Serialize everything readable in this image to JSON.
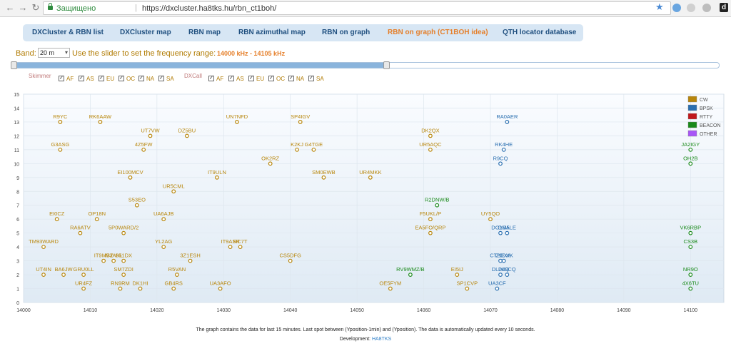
{
  "browser": {
    "secure_label": "Защищено",
    "separator": "|",
    "url": "https://dxcluster.ha8tks.hu/rbn_ct1boh/"
  },
  "nav": {
    "tabs": [
      {
        "label": "DXCluster & RBN list",
        "active": false
      },
      {
        "label": "DXCluster map",
        "active": false
      },
      {
        "label": "RBN map",
        "active": false
      },
      {
        "label": "RBN azimuthal map",
        "active": false
      },
      {
        "label": "RBN on graph",
        "active": false
      },
      {
        "label": "RBN on graph (CT1BOH idea)",
        "active": true
      },
      {
        "label": "QTH locator database",
        "active": false
      }
    ]
  },
  "controls": {
    "band_label": "Band:",
    "band_value": "20 m",
    "slider_label": "Use the slider to set the frequency range:",
    "range_text": "14000 kHz - 14105 kHz",
    "slider_fraction": [
      0.0,
      0.53
    ],
    "skimmer_label": "Skimmer",
    "dxcall_label": "DXCall",
    "skimmer_filters": [
      {
        "label": "AF",
        "checked": true
      },
      {
        "label": "AS",
        "checked": true
      },
      {
        "label": "EU",
        "checked": true
      },
      {
        "label": "OC",
        "checked": true
      },
      {
        "label": "NA",
        "checked": true
      },
      {
        "label": "SA",
        "checked": true
      }
    ],
    "dxcall_filters": [
      {
        "label": "AF",
        "checked": true
      },
      {
        "label": "AS",
        "checked": true
      },
      {
        "label": "EU",
        "checked": true
      },
      {
        "label": "OC",
        "checked": true
      },
      {
        "label": "NA",
        "checked": true
      },
      {
        "label": "SA",
        "checked": true
      }
    ]
  },
  "footer": {
    "note": "The graph contains the data for last 15 minutes. Last spot between (Yposition-1min) and (Yposition). The data is automatically updated every 10 seconds.",
    "dev_label": "Development:",
    "dev_name": "HA8TKS"
  },
  "chart_data": {
    "type": "scatter",
    "xlim": [
      14000,
      14105
    ],
    "ylim": [
      0,
      15
    ],
    "x_ticks": [
      14000,
      14010,
      14020,
      14030,
      14040,
      14050,
      14060,
      14070,
      14080,
      14090,
      14100
    ],
    "y_ticks": [
      0,
      1,
      2,
      3,
      4,
      5,
      6,
      7,
      8,
      9,
      10,
      11,
      12,
      13,
      14,
      15
    ],
    "grid": true,
    "legend_position": "top-right",
    "legend": [
      {
        "name": "CW",
        "color": "#b8860b"
      },
      {
        "name": "BPSK",
        "color": "#2a6fb0"
      },
      {
        "name": "RTTY",
        "color": "#c0181c"
      },
      {
        "name": "BEACON",
        "color": "#1a8a1a"
      },
      {
        "name": "OTHER",
        "color": "#a855f7"
      }
    ],
    "colors": {
      "CW": "#b8860b",
      "BPSK": "#2a6fb0",
      "BEACON": "#1a8a1a"
    },
    "points": [
      {
        "call": "R9YC",
        "x": 14005.5,
        "y": 13,
        "mode": "CW"
      },
      {
        "call": "RK6AAW",
        "x": 14011.5,
        "y": 13,
        "mode": "CW"
      },
      {
        "call": "UN7NFD",
        "x": 14032.0,
        "y": 13,
        "mode": "CW"
      },
      {
        "call": "SP4IGV",
        "x": 14041.5,
        "y": 13,
        "mode": "CW"
      },
      {
        "call": "RA0AER",
        "x": 14072.5,
        "y": 13,
        "mode": "BPSK"
      },
      {
        "call": "UT7VW",
        "x": 14019.0,
        "y": 12,
        "mode": "CW"
      },
      {
        "call": "DZ5BU",
        "x": 14024.5,
        "y": 12,
        "mode": "CW"
      },
      {
        "call": "DK2QX",
        "x": 14061.0,
        "y": 12,
        "mode": "CW"
      },
      {
        "call": "G3ASG",
        "x": 14005.5,
        "y": 11,
        "mode": "CW"
      },
      {
        "call": "4Z5FW",
        "x": 14018.0,
        "y": 11,
        "mode": "CW"
      },
      {
        "call": "K2KJ",
        "x": 14041.0,
        "y": 11,
        "mode": "CW"
      },
      {
        "call": "G4TGE",
        "x": 14043.5,
        "y": 11,
        "mode": "CW"
      },
      {
        "call": "UR5AQC",
        "x": 14061.0,
        "y": 11,
        "mode": "CW"
      },
      {
        "call": "RK4HE",
        "x": 14072.0,
        "y": 11,
        "mode": "BPSK"
      },
      {
        "call": "JA2IGY",
        "x": 14100.0,
        "y": 11,
        "mode": "BEACON"
      },
      {
        "call": "OK2RZ",
        "x": 14037.0,
        "y": 10,
        "mode": "CW"
      },
      {
        "call": "R9CQ",
        "x": 14071.5,
        "y": 10,
        "mode": "BPSK"
      },
      {
        "call": "OH2B",
        "x": 14100.0,
        "y": 10,
        "mode": "BEACON"
      },
      {
        "call": "EI100MCV",
        "x": 14016.0,
        "y": 9,
        "mode": "CW"
      },
      {
        "call": "IT9ULN",
        "x": 14029.0,
        "y": 9,
        "mode": "CW"
      },
      {
        "call": "SM0EWB",
        "x": 14045.0,
        "y": 9,
        "mode": "CW"
      },
      {
        "call": "UR4MKK",
        "x": 14052.0,
        "y": 9,
        "mode": "CW"
      },
      {
        "call": "UR5CML",
        "x": 14022.5,
        "y": 8,
        "mode": "CW"
      },
      {
        "call": "S53EO",
        "x": 14017.0,
        "y": 7,
        "mode": "CW"
      },
      {
        "call": "R2DNW/B",
        "x": 14062.0,
        "y": 7,
        "mode": "BEACON"
      },
      {
        "call": "EI0CZ",
        "x": 14005.0,
        "y": 6,
        "mode": "CW"
      },
      {
        "call": "OP18N",
        "x": 14011.0,
        "y": 6,
        "mode": "CW"
      },
      {
        "call": "UA6AJB",
        "x": 14021.0,
        "y": 6,
        "mode": "CW"
      },
      {
        "call": "F5UKL/P",
        "x": 14061.0,
        "y": 6,
        "mode": "CW"
      },
      {
        "call": "UY5QO",
        "x": 14070.0,
        "y": 6,
        "mode": "CW"
      },
      {
        "call": "RA6ATV",
        "x": 14008.5,
        "y": 5,
        "mode": "CW"
      },
      {
        "call": "5P0WARD/2",
        "x": 14015.0,
        "y": 5,
        "mode": "CW"
      },
      {
        "call": "EA5FO/QRP",
        "x": 14061.0,
        "y": 5,
        "mode": "CW"
      },
      {
        "call": "DG1SA",
        "x": 14071.5,
        "y": 5,
        "mode": "BPSK"
      },
      {
        "call": "DM5LE",
        "x": 14072.5,
        "y": 5,
        "mode": "BPSK"
      },
      {
        "call": "VK6RBP",
        "x": 14100.0,
        "y": 5,
        "mode": "BEACON"
      },
      {
        "call": "TM93WARD",
        "x": 14003.0,
        "y": 4,
        "mode": "CW"
      },
      {
        "call": "YL2AG",
        "x": 14021.0,
        "y": 4,
        "mode": "CW"
      },
      {
        "call": "IT9ASR",
        "x": 14031.0,
        "y": 4,
        "mode": "CW"
      },
      {
        "call": "RC7T",
        "x": 14032.5,
        "y": 4,
        "mode": "CW"
      },
      {
        "call": "CS3B",
        "x": 14100.0,
        "y": 4,
        "mode": "BEACON"
      },
      {
        "call": "IT9MBZ",
        "x": 14012.0,
        "y": 3,
        "mode": "CW"
      },
      {
        "call": "IV3AHL",
        "x": 14013.5,
        "y": 3,
        "mode": "CW"
      },
      {
        "call": "S51DX",
        "x": 14015.0,
        "y": 3,
        "mode": "CW"
      },
      {
        "call": "3Z1ESH",
        "x": 14025.0,
        "y": 3,
        "mode": "CW"
      },
      {
        "call": "CS5DFG",
        "x": 14040.0,
        "y": 3,
        "mode": "CW"
      },
      {
        "call": "CT2DXA",
        "x": 14071.5,
        "y": 3,
        "mode": "BPSK"
      },
      {
        "call": "IZ0DXK",
        "x": 14072.0,
        "y": 3,
        "mode": "BPSK"
      },
      {
        "call": "UT4IN",
        "x": 14003.0,
        "y": 2,
        "mode": "CW"
      },
      {
        "call": "BA6JW",
        "x": 14006.0,
        "y": 2,
        "mode": "CW"
      },
      {
        "call": "GRU0LL",
        "x": 14009.0,
        "y": 2,
        "mode": "CW"
      },
      {
        "call": "SM7ZDI",
        "x": 14015.0,
        "y": 2,
        "mode": "CW"
      },
      {
        "call": "R5VAN",
        "x": 14023.0,
        "y": 2,
        "mode": "CW"
      },
      {
        "call": "RV9WMZ/B",
        "x": 14058.0,
        "y": 2,
        "mode": "BEACON"
      },
      {
        "call": "EI5IJ",
        "x": 14065.0,
        "y": 2,
        "mode": "CW"
      },
      {
        "call": "DL2KQ",
        "x": 14071.5,
        "y": 2,
        "mode": "BPSK"
      },
      {
        "call": "DJ9CQ",
        "x": 14072.5,
        "y": 2,
        "mode": "BPSK"
      },
      {
        "call": "NR9O",
        "x": 14100.0,
        "y": 2,
        "mode": "BEACON"
      },
      {
        "call": "UR4FZ",
        "x": 14009.0,
        "y": 1,
        "mode": "CW"
      },
      {
        "call": "RN9RM",
        "x": 14014.5,
        "y": 1,
        "mode": "CW"
      },
      {
        "call": "DK1HI",
        "x": 14017.5,
        "y": 1,
        "mode": "CW"
      },
      {
        "call": "GB4RS",
        "x": 14022.5,
        "y": 1,
        "mode": "CW"
      },
      {
        "call": "UA3AFO",
        "x": 14029.5,
        "y": 1,
        "mode": "CW"
      },
      {
        "call": "OE5FYM",
        "x": 14055.0,
        "y": 1,
        "mode": "CW"
      },
      {
        "call": "SP1CVP",
        "x": 14066.5,
        "y": 1,
        "mode": "CW"
      },
      {
        "call": "UA3CF",
        "x": 14071.0,
        "y": 1,
        "mode": "BPSK"
      },
      {
        "call": "4X6TU",
        "x": 14100.0,
        "y": 1,
        "mode": "BEACON"
      }
    ]
  }
}
